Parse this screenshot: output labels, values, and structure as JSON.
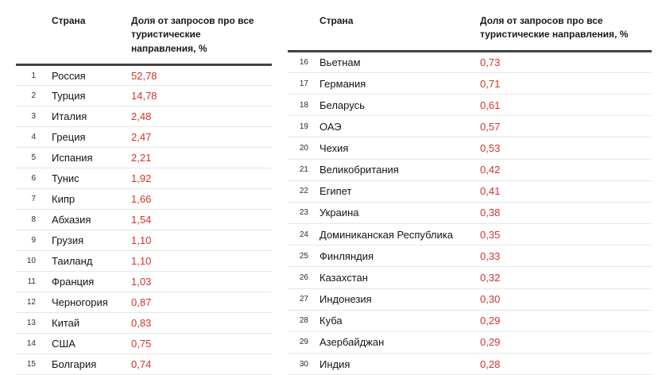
{
  "table": {
    "country_header": "Страна",
    "share_header": "Доля от запросов про все туристические направления, %",
    "left_rows": [
      {
        "rank": "1",
        "country": "Россия",
        "value": "52,78"
      },
      {
        "rank": "2",
        "country": "Турция",
        "value": "14,78"
      },
      {
        "rank": "3",
        "country": "Италия",
        "value": "2,48"
      },
      {
        "rank": "4",
        "country": "Греция",
        "value": "2,47"
      },
      {
        "rank": "5",
        "country": "Испания",
        "value": "2,21"
      },
      {
        "rank": "6",
        "country": "Тунис",
        "value": "1,92"
      },
      {
        "rank": "7",
        "country": "Кипр",
        "value": "1,66"
      },
      {
        "rank": "8",
        "country": "Абхазия",
        "value": "1,54"
      },
      {
        "rank": "9",
        "country": "Грузия",
        "value": "1,10"
      },
      {
        "rank": "10",
        "country": "Таиланд",
        "value": "1,10"
      },
      {
        "rank": "11",
        "country": "Франция",
        "value": "1,03"
      },
      {
        "rank": "12",
        "country": "Черногория",
        "value": "0,87"
      },
      {
        "rank": "13",
        "country": "Китай",
        "value": "0,83"
      },
      {
        "rank": "14",
        "country": "США",
        "value": "0,75"
      },
      {
        "rank": "15",
        "country": "Болгария",
        "value": "0,74"
      }
    ],
    "right_rows": [
      {
        "rank": "16",
        "country": "Вьетнам",
        "value": "0,73"
      },
      {
        "rank": "17",
        "country": "Германия",
        "value": "0,71"
      },
      {
        "rank": "18",
        "country": "Беларусь",
        "value": "0,61"
      },
      {
        "rank": "19",
        "country": "ОАЭ",
        "value": "0,57"
      },
      {
        "rank": "20",
        "country": "Чехия",
        "value": "0,53"
      },
      {
        "rank": "21",
        "country": "Великобритания",
        "value": "0,42"
      },
      {
        "rank": "22",
        "country": "Египет",
        "value": "0,41"
      },
      {
        "rank": "23",
        "country": "Украина",
        "value": "0,38"
      },
      {
        "rank": "24",
        "country": "Доминиканская Республика",
        "value": "0,35"
      },
      {
        "rank": "25",
        "country": "Финляндия",
        "value": "0,33"
      },
      {
        "rank": "26",
        "country": "Казахстан",
        "value": "0,32"
      },
      {
        "rank": "27",
        "country": "Индонезия",
        "value": "0,30"
      },
      {
        "rank": "28",
        "country": "Куба",
        "value": "0,29"
      },
      {
        "rank": "29",
        "country": "Азербайджан",
        "value": "0,29"
      },
      {
        "rank": "30",
        "country": "Индия",
        "value": "0,28"
      }
    ]
  },
  "colors": {
    "value_red": "#d4322d",
    "header_border": "#424242",
    "row_border": "#e5e5e5"
  },
  "chart_data": {
    "type": "table",
    "columns": [
      "№",
      "Страна",
      "Доля от запросов про все туристические направления, %"
    ],
    "rows": [
      [
        1,
        "Россия",
        52.78
      ],
      [
        2,
        "Турция",
        14.78
      ],
      [
        3,
        "Италия",
        2.48
      ],
      [
        4,
        "Греция",
        2.47
      ],
      [
        5,
        "Испания",
        2.21
      ],
      [
        6,
        "Тунис",
        1.92
      ],
      [
        7,
        "Кипр",
        1.66
      ],
      [
        8,
        "Абхазия",
        1.54
      ],
      [
        9,
        "Грузия",
        1.1
      ],
      [
        10,
        "Таиланд",
        1.1
      ],
      [
        11,
        "Франция",
        1.03
      ],
      [
        12,
        "Черногория",
        0.87
      ],
      [
        13,
        "Китай",
        0.83
      ],
      [
        14,
        "США",
        0.75
      ],
      [
        15,
        "Болгария",
        0.74
      ],
      [
        16,
        "Вьетнам",
        0.73
      ],
      [
        17,
        "Германия",
        0.71
      ],
      [
        18,
        "Беларусь",
        0.61
      ],
      [
        19,
        "ОАЭ",
        0.57
      ],
      [
        20,
        "Чехия",
        0.53
      ],
      [
        21,
        "Великобритания",
        0.42
      ],
      [
        22,
        "Египет",
        0.41
      ],
      [
        23,
        "Украина",
        0.38
      ],
      [
        24,
        "Доминиканская Республика",
        0.35
      ],
      [
        25,
        "Финляндия",
        0.33
      ],
      [
        26,
        "Казахстан",
        0.32
      ],
      [
        27,
        "Индонезия",
        0.3
      ],
      [
        28,
        "Куба",
        0.29
      ],
      [
        29,
        "Азербайджан",
        0.29
      ],
      [
        30,
        "Индия",
        0.28
      ]
    ],
    "title": "",
    "layout": {
      "grid": "horizontal row separators",
      "legend": "none"
    }
  }
}
